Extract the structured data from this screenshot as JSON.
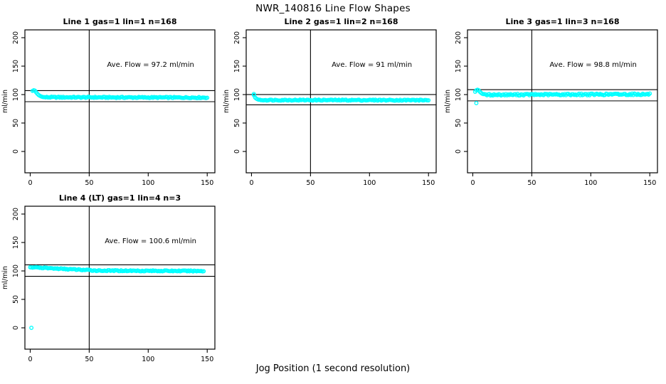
{
  "figure": {
    "title": "NWR_140816  Line Flow Shapes",
    "xlabel": "Jog Position (1 second resolution)",
    "background": "#ffffff",
    "axis_color": "#000000",
    "point_color": "#00ffff"
  },
  "chart_data": [
    {
      "type": "scatter",
      "title": "Line 1 gas=1 lin=1 n=168",
      "line": 1,
      "gas": 1,
      "lin": 1,
      "n": 168,
      "annotation": "Ave. Flow =  97.2  ml/min",
      "avg_flow_ml_min": 97.2,
      "ylabel": "ml/min",
      "xlim": [
        -4.5,
        156.5
      ],
      "ylim": [
        -37.5,
        213.75
      ],
      "xticks": [
        0,
        50,
        100,
        150
      ],
      "yticks": [
        0,
        50,
        100,
        150,
        200
      ],
      "vline_x": 50,
      "hlines": [
        106.9,
        87.5
      ],
      "annotation_xy": [
        102,
        149
      ],
      "transient_points": [
        [
          2,
          106.5
        ],
        [
          3,
          107.5
        ],
        [
          4,
          107
        ],
        [
          5,
          104
        ],
        [
          6,
          101.5
        ],
        [
          7,
          99.5
        ],
        [
          8,
          98
        ],
        [
          9,
          97
        ],
        [
          10,
          96.2
        ],
        [
          11,
          95.6
        ]
      ],
      "outliers": [],
      "bands": [
        {
          "x_from": 12,
          "x_to": 150,
          "y_from": 95.3,
          "y_to": 94.7,
          "jitter": 1.0
        }
      ]
    },
    {
      "type": "scatter",
      "title": "Line 2 gas=1 lin=2 n=168",
      "line": 2,
      "gas": 1,
      "lin": 2,
      "n": 168,
      "annotation": "Ave. Flow =  91  ml/min",
      "avg_flow_ml_min": 91,
      "ylabel": "ml/min",
      "xlim": [
        -4.5,
        156.5
      ],
      "ylim": [
        -37.5,
        213.75
      ],
      "xticks": [
        0,
        50,
        100,
        150
      ],
      "yticks": [
        0,
        50,
        100,
        150,
        200
      ],
      "vline_x": 50,
      "hlines": [
        100.1,
        81.9
      ],
      "annotation_xy": [
        102,
        149
      ],
      "transient_points": [
        [
          2,
          101
        ],
        [
          2,
          99
        ],
        [
          3,
          95
        ],
        [
          4,
          93
        ],
        [
          5,
          91.8
        ],
        [
          6,
          91
        ]
      ],
      "outliers": [],
      "bands": [
        {
          "x_from": 7,
          "x_to": 150,
          "y_from": 90.4,
          "y_to": 90.2,
          "jitter": 0.9
        }
      ]
    },
    {
      "type": "scatter",
      "title": "Line 3 gas=1 lin=3 n=168",
      "line": 3,
      "gas": 1,
      "lin": 3,
      "n": 168,
      "annotation": "Ave. Flow =  98.8  ml/min",
      "avg_flow_ml_min": 98.8,
      "ylabel": "ml/min",
      "xlim": [
        -4.5,
        156.5
      ],
      "ylim": [
        -37.5,
        213.75
      ],
      "xticks": [
        0,
        50,
        100,
        150
      ],
      "yticks": [
        0,
        50,
        100,
        150,
        200
      ],
      "vline_x": 50,
      "hlines": [
        108.7,
        88.9
      ],
      "annotation_xy": [
        102,
        149
      ],
      "transient_points": [
        [
          2,
          105
        ],
        [
          3,
          107.5
        ],
        [
          4,
          108.5
        ],
        [
          5,
          107.5
        ],
        [
          6,
          105
        ],
        [
          7,
          103
        ],
        [
          8,
          101.5
        ],
        [
          9,
          100.8
        ]
      ],
      "outliers": [
        [
          3,
          85
        ]
      ],
      "bands": [
        {
          "x_from": 10,
          "x_to": 150,
          "y_from": 99.6,
          "y_to": 100.6,
          "jitter": 1.4
        }
      ]
    },
    {
      "type": "scatter",
      "title": "Line 4 (LT) gas=1 lin=4 n=3",
      "line": 4,
      "gas": 1,
      "lin": 4,
      "n": 3,
      "annotation": "Ave. Flow =  100.6  ml/min",
      "avg_flow_ml_min": 100.6,
      "ylabel": "ml/min",
      "xlim": [
        -4.5,
        156.5
      ],
      "ylim": [
        -37.5,
        213.75
      ],
      "xticks": [
        0,
        50,
        100,
        150
      ],
      "yticks": [
        0,
        50,
        100,
        150,
        200
      ],
      "vline_x": 50,
      "hlines": [
        110.7,
        90.5
      ],
      "annotation_xy": [
        102,
        149
      ],
      "transient_points": [],
      "outliers": [
        [
          1,
          0
        ]
      ],
      "bands": [
        {
          "x_from": 0,
          "x_to": 55,
          "y_from": 106.5,
          "y_to": 100.8,
          "jitter": 0.9
        },
        {
          "x_from": 56,
          "x_to": 147,
          "y_from": 100.6,
          "y_to": 99.8,
          "jitter": 0.9
        }
      ]
    }
  ]
}
